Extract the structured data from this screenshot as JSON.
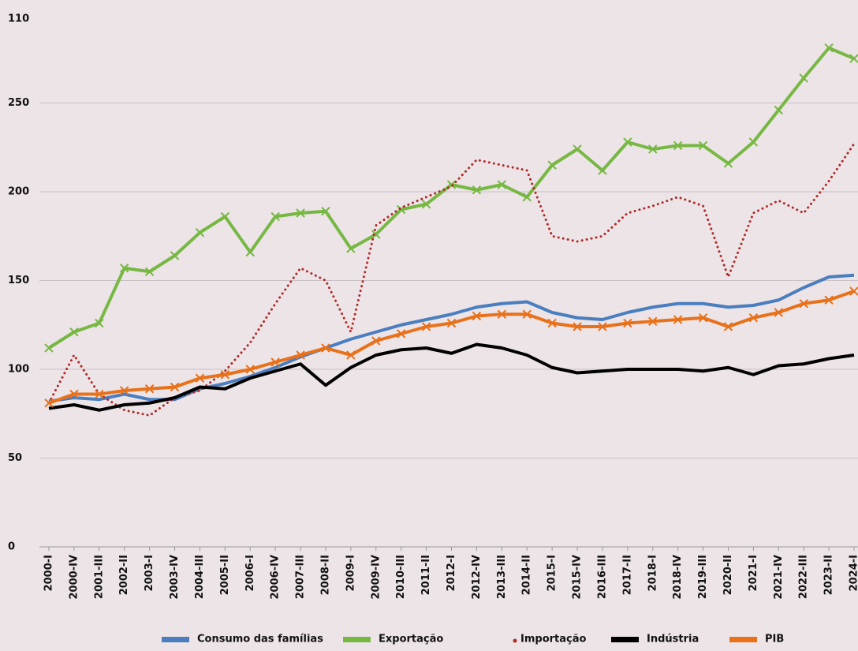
{
  "chart_data": {
    "type": "line",
    "top_label": "110",
    "categories": [
      "2000-I",
      "2000-IV",
      "2001-III",
      "2002-II",
      "2003-I",
      "2003-IV",
      "2004-III",
      "2005-II",
      "2006-I",
      "2006-IV",
      "2007-III",
      "2008-II",
      "2009-I",
      "2009-IV",
      "2010-III",
      "2011-II",
      "2012-I",
      "2012-IV",
      "2013-III",
      "2014-II",
      "2015-I",
      "2015-IV",
      "2016-III",
      "2017-II",
      "2018-I",
      "2018-IV",
      "2019-III",
      "2020-II",
      "2021-I",
      "2021-IV",
      "2022-III",
      "2023-II",
      "2024-I"
    ],
    "series": [
      {
        "name": "Consumo das famílias",
        "color": "#4a7ebf",
        "style": "solid",
        "marker": "none",
        "values": [
          82,
          84,
          83,
          86,
          83,
          83,
          89,
          92,
          96,
          101,
          107,
          112,
          117,
          121,
          125,
          128,
          131,
          135,
          137,
          138,
          132,
          129,
          128,
          132,
          135,
          137,
          137,
          135,
          136,
          139,
          146,
          152,
          153
        ]
      },
      {
        "name": "Exportação",
        "color": "#77b843",
        "style": "solid",
        "marker": "x",
        "values": [
          112,
          121,
          126,
          157,
          155,
          164,
          177,
          186,
          166,
          186,
          188,
          189,
          168,
          176,
          190,
          193,
          204,
          201,
          204,
          197,
          215,
          224,
          212,
          228,
          224,
          226,
          226,
          216,
          228,
          246,
          264,
          281,
          275
        ]
      },
      {
        "name": "Importação",
        "color": "#b02a2a",
        "style": "dotted",
        "marker": "none",
        "values": [
          81,
          108,
          86,
          77,
          74,
          84,
          88,
          99,
          115,
          137,
          157,
          150,
          121,
          181,
          191,
          197,
          203,
          218,
          215,
          212,
          175,
          172,
          175,
          188,
          192,
          197,
          192,
          152,
          188,
          195,
          188,
          206,
          227
        ]
      },
      {
        "name": "Indústria",
        "color": "#000000",
        "style": "solid",
        "marker": "none",
        "values": [
          78,
          80,
          77,
          80,
          81,
          84,
          90,
          89,
          95,
          99,
          103,
          91,
          101,
          108,
          111,
          112,
          109,
          114,
          112,
          108,
          101,
          98,
          99,
          100,
          100,
          100,
          99,
          101,
          97,
          102,
          103,
          106,
          108
        ]
      },
      {
        "name": "PIB",
        "color": "#e8711a",
        "style": "solid",
        "marker": "x",
        "values": [
          81,
          86,
          86,
          88,
          89,
          90,
          95,
          97,
          100,
          104,
          108,
          112,
          108,
          116,
          120,
          124,
          126,
          130,
          131,
          131,
          126,
          124,
          124,
          126,
          127,
          128,
          129,
          124,
          129,
          132,
          137,
          139,
          144
        ]
      }
    ],
    "ylim": [
      0,
      300
    ],
    "yticks": [
      0,
      50,
      100,
      150,
      200,
      250
    ],
    "grid": true,
    "legend": "bottom"
  }
}
